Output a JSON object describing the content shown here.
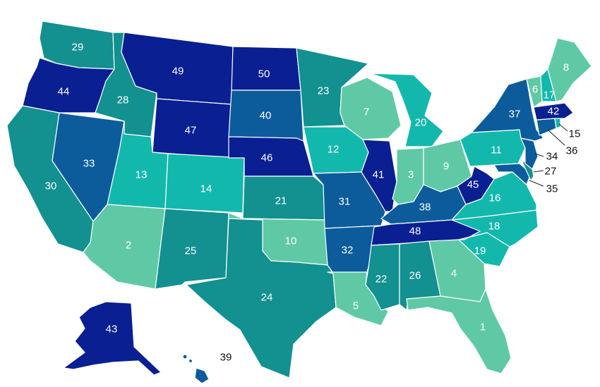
{
  "colors": {
    "tier_1_lightest": "#5fc9a6",
    "tier_2_teal": "#13b8ad",
    "tier_3_mid": "#139090",
    "tier_4_blue": "#0c5c9c",
    "tier_5_navy": "#0a1f91",
    "border": "#ffffff"
  },
  "states": [
    {
      "code": "WA",
      "rank": "29",
      "tier": "tier_3_mid"
    },
    {
      "code": "OR",
      "rank": "44",
      "tier": "tier_5_navy"
    },
    {
      "code": "CA",
      "rank": "30",
      "tier": "tier_3_mid"
    },
    {
      "code": "NV",
      "rank": "33",
      "tier": "tier_4_blue"
    },
    {
      "code": "ID",
      "rank": "28",
      "tier": "tier_3_mid"
    },
    {
      "code": "MT",
      "rank": "49",
      "tier": "tier_5_navy"
    },
    {
      "code": "WY",
      "rank": "47",
      "tier": "tier_5_navy"
    },
    {
      "code": "UT",
      "rank": "13",
      "tier": "tier_2_teal"
    },
    {
      "code": "AZ",
      "rank": "2",
      "tier": "tier_1_lightest"
    },
    {
      "code": "CO",
      "rank": "14",
      "tier": "tier_2_teal"
    },
    {
      "code": "NM",
      "rank": "25",
      "tier": "tier_3_mid"
    },
    {
      "code": "ND",
      "rank": "50",
      "tier": "tier_5_navy"
    },
    {
      "code": "SD",
      "rank": "40",
      "tier": "tier_4_blue"
    },
    {
      "code": "NE",
      "rank": "46",
      "tier": "tier_5_navy"
    },
    {
      "code": "KS",
      "rank": "21",
      "tier": "tier_3_mid"
    },
    {
      "code": "OK",
      "rank": "10",
      "tier": "tier_1_lightest"
    },
    {
      "code": "TX",
      "rank": "24",
      "tier": "tier_3_mid"
    },
    {
      "code": "MN",
      "rank": "23",
      "tier": "tier_3_mid"
    },
    {
      "code": "IA",
      "rank": "12",
      "tier": "tier_2_teal"
    },
    {
      "code": "MO",
      "rank": "31",
      "tier": "tier_4_blue"
    },
    {
      "code": "AR",
      "rank": "32",
      "tier": "tier_4_blue"
    },
    {
      "code": "LA",
      "rank": "5",
      "tier": "tier_1_lightest"
    },
    {
      "code": "WI",
      "rank": "7",
      "tier": "tier_1_lightest"
    },
    {
      "code": "IL",
      "rank": "41",
      "tier": "tier_5_navy"
    },
    {
      "code": "MI",
      "rank": "20",
      "tier": "tier_2_teal"
    },
    {
      "code": "IN",
      "rank": "3",
      "tier": "tier_1_lightest"
    },
    {
      "code": "OH",
      "rank": "9",
      "tier": "tier_1_lightest"
    },
    {
      "code": "KY",
      "rank": "38",
      "tier": "tier_4_blue"
    },
    {
      "code": "TN",
      "rank": "48",
      "tier": "tier_5_navy"
    },
    {
      "code": "MS",
      "rank": "22",
      "tier": "tier_3_mid"
    },
    {
      "code": "AL",
      "rank": "26",
      "tier": "tier_3_mid"
    },
    {
      "code": "GA",
      "rank": "4",
      "tier": "tier_1_lightest"
    },
    {
      "code": "FL",
      "rank": "1",
      "tier": "tier_1_lightest"
    },
    {
      "code": "SC",
      "rank": "19",
      "tier": "tier_2_teal"
    },
    {
      "code": "NC",
      "rank": "18",
      "tier": "tier_2_teal"
    },
    {
      "code": "VA",
      "rank": "16",
      "tier": "tier_2_teal"
    },
    {
      "code": "WV",
      "rank": "45",
      "tier": "tier_5_navy"
    },
    {
      "code": "PA",
      "rank": "11",
      "tier": "tier_2_teal"
    },
    {
      "code": "NY",
      "rank": "37",
      "tier": "tier_4_blue"
    },
    {
      "code": "VT",
      "rank": "6",
      "tier": "tier_1_lightest"
    },
    {
      "code": "NH",
      "rank": "17",
      "tier": "tier_2_teal"
    },
    {
      "code": "ME",
      "rank": "8",
      "tier": "tier_1_lightest"
    },
    {
      "code": "MA",
      "rank": "42",
      "tier": "tier_5_navy"
    },
    {
      "code": "RI",
      "rank": "15",
      "tier": "tier_2_teal"
    },
    {
      "code": "CT",
      "rank": "36",
      "tier": "tier_4_blue"
    },
    {
      "code": "NJ",
      "rank": "34",
      "tier": "tier_4_blue"
    },
    {
      "code": "DE",
      "rank": "27",
      "tier": "tier_3_mid"
    },
    {
      "code": "MD",
      "rank": "35",
      "tier": "tier_4_blue"
    },
    {
      "code": "AK",
      "rank": "43",
      "tier": "tier_5_navy"
    },
    {
      "code": "HI",
      "rank": "39",
      "tier": "tier_4_blue"
    }
  ]
}
